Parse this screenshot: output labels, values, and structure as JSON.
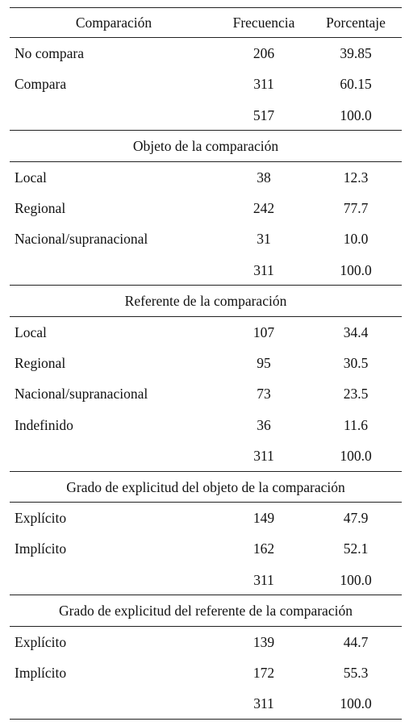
{
  "header": {
    "col1": "Comparación",
    "col2": "Frecuencia",
    "col3": "Porcentaje"
  },
  "blocks": [
    {
      "title": "",
      "rows": [
        {
          "label": "No compara",
          "freq": "206",
          "pct": "39.85"
        },
        {
          "label": "Compara",
          "freq": "311",
          "pct": "60.15"
        },
        {
          "label": "",
          "freq": "517",
          "pct": "100.0"
        }
      ]
    },
    {
      "title": "Objeto de la comparación",
      "rows": [
        {
          "label": "Local",
          "freq": "38",
          "pct": "12.3"
        },
        {
          "label": "Regional",
          "freq": "242",
          "pct": "77.7"
        },
        {
          "label": "Nacional/supranacional",
          "freq": "31",
          "pct": "10.0"
        },
        {
          "label": "",
          "freq": "311",
          "pct": "100.0"
        }
      ]
    },
    {
      "title": "Referente de la comparación",
      "rows": [
        {
          "label": "Local",
          "freq": "107",
          "pct": "34.4"
        },
        {
          "label": "Regional",
          "freq": "95",
          "pct": "30.5"
        },
        {
          "label": "Nacional/supranacional",
          "freq": "73",
          "pct": "23.5"
        },
        {
          "label": "Indefinido",
          "freq": "36",
          "pct": "11.6"
        },
        {
          "label": "",
          "freq": "311",
          "pct": "100.0"
        }
      ]
    },
    {
      "title": "Grado de explicitud del objeto de la comparación",
      "rows": [
        {
          "label": "Explícito",
          "freq": "149",
          "pct": "47.9"
        },
        {
          "label": "Implícito",
          "freq": "162",
          "pct": "52.1"
        },
        {
          "label": "",
          "freq": "311",
          "pct": "100.0"
        }
      ]
    },
    {
      "title": "Grado de explicitud del referente de la comparación",
      "rows": [
        {
          "label": "Explícito",
          "freq": "139",
          "pct": "44.7"
        },
        {
          "label": "Implícito",
          "freq": "172",
          "pct": "55.3"
        },
        {
          "label": "",
          "freq": "311",
          "pct": "100.0"
        }
      ]
    }
  ]
}
